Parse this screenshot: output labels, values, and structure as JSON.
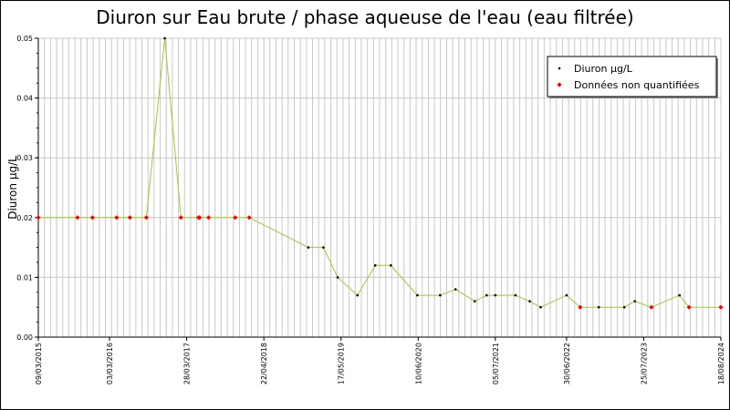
{
  "chart_data": {
    "type": "line",
    "title": "Diuron sur Eau brute / phase aqueuse de l'eau (eau filtrée)",
    "xlabel": "",
    "ylabel": "Diuron µg/L",
    "xlim": [
      "2015-03-09",
      "2024-08-18"
    ],
    "ylim": [
      0,
      0.05
    ],
    "y_ticks": [
      "0.00",
      "0.01",
      "0.02",
      "0.03",
      "0.04",
      "0.05"
    ],
    "x_ticks": [
      "09/03/2015",
      "03/03/2016",
      "28/03/2017",
      "22/04/2018",
      "17/05/2019",
      "10/06/2020",
      "05/07/2021",
      "30/06/2022",
      "25/07/2023",
      "18/08/2024"
    ],
    "grid": true,
    "legend_position": "top-right",
    "colors": {
      "line": "#99cc33",
      "quantified_marker": "#000000",
      "non_quantified_marker": "#ff0000",
      "grid": "#c8c8c8",
      "background": "#ffffff"
    },
    "series": [
      {
        "name": "Diuron µg/L",
        "points": [
          {
            "date": "2015-03-09",
            "value": 0.02,
            "quantified": false
          },
          {
            "date": "2015-09-23",
            "value": 0.02,
            "quantified": false
          },
          {
            "date": "2015-12-08",
            "value": 0.02,
            "quantified": false
          },
          {
            "date": "2016-04-08",
            "value": 0.02,
            "quantified": false
          },
          {
            "date": "2016-06-14",
            "value": 0.02,
            "quantified": false
          },
          {
            "date": "2016-09-05",
            "value": 0.02,
            "quantified": false
          },
          {
            "date": "2016-12-07",
            "value": 0.05,
            "quantified": true
          },
          {
            "date": "2017-02-27",
            "value": 0.02,
            "quantified": false
          },
          {
            "date": "2017-05-27",
            "value": 0.02,
            "quantified": false
          },
          {
            "date": "2017-06-01",
            "value": 0.02,
            "quantified": false
          },
          {
            "date": "2017-07-17",
            "value": 0.02,
            "quantified": false
          },
          {
            "date": "2017-11-28",
            "value": 0.02,
            "quantified": false
          },
          {
            "date": "2018-02-07",
            "value": 0.02,
            "quantified": false
          },
          {
            "date": "2018-12-03",
            "value": 0.015,
            "quantified": true
          },
          {
            "date": "2019-02-17",
            "value": 0.015,
            "quantified": true
          },
          {
            "date": "2019-04-30",
            "value": 0.01,
            "quantified": true
          },
          {
            "date": "2019-08-08",
            "value": 0.007,
            "quantified": true
          },
          {
            "date": "2019-11-06",
            "value": 0.012,
            "quantified": true
          },
          {
            "date": "2020-01-24",
            "value": 0.012,
            "quantified": true
          },
          {
            "date": "2020-06-06",
            "value": 0.007,
            "quantified": true
          },
          {
            "date": "2020-09-29",
            "value": 0.007,
            "quantified": true
          },
          {
            "date": "2020-12-16",
            "value": 0.008,
            "quantified": true
          },
          {
            "date": "2021-03-23",
            "value": 0.006,
            "quantified": true
          },
          {
            "date": "2021-05-22",
            "value": 0.007,
            "quantified": true
          },
          {
            "date": "2021-07-05",
            "value": 0.007,
            "quantified": true
          },
          {
            "date": "2021-10-15",
            "value": 0.007,
            "quantified": true
          },
          {
            "date": "2021-12-26",
            "value": 0.006,
            "quantified": true
          },
          {
            "date": "2022-02-19",
            "value": 0.005,
            "quantified": true
          },
          {
            "date": "2022-06-30",
            "value": 0.007,
            "quantified": true
          },
          {
            "date": "2022-09-07",
            "value": 0.005,
            "quantified": false
          },
          {
            "date": "2022-12-10",
            "value": 0.005,
            "quantified": true
          },
          {
            "date": "2023-04-18",
            "value": 0.005,
            "quantified": true
          },
          {
            "date": "2023-06-10",
            "value": 0.006,
            "quantified": true
          },
          {
            "date": "2023-09-02",
            "value": 0.005,
            "quantified": false
          },
          {
            "date": "2024-01-22",
            "value": 0.007,
            "quantified": true
          },
          {
            "date": "2024-03-10",
            "value": 0.005,
            "quantified": false
          },
          {
            "date": "2024-08-18",
            "value": 0.005,
            "quantified": false
          }
        ]
      }
    ],
    "legend": [
      {
        "label": "Diuron µg/L",
        "marker": "black-dot"
      },
      {
        "label": "Données non quantifiées",
        "marker": "red-diamond"
      }
    ]
  }
}
